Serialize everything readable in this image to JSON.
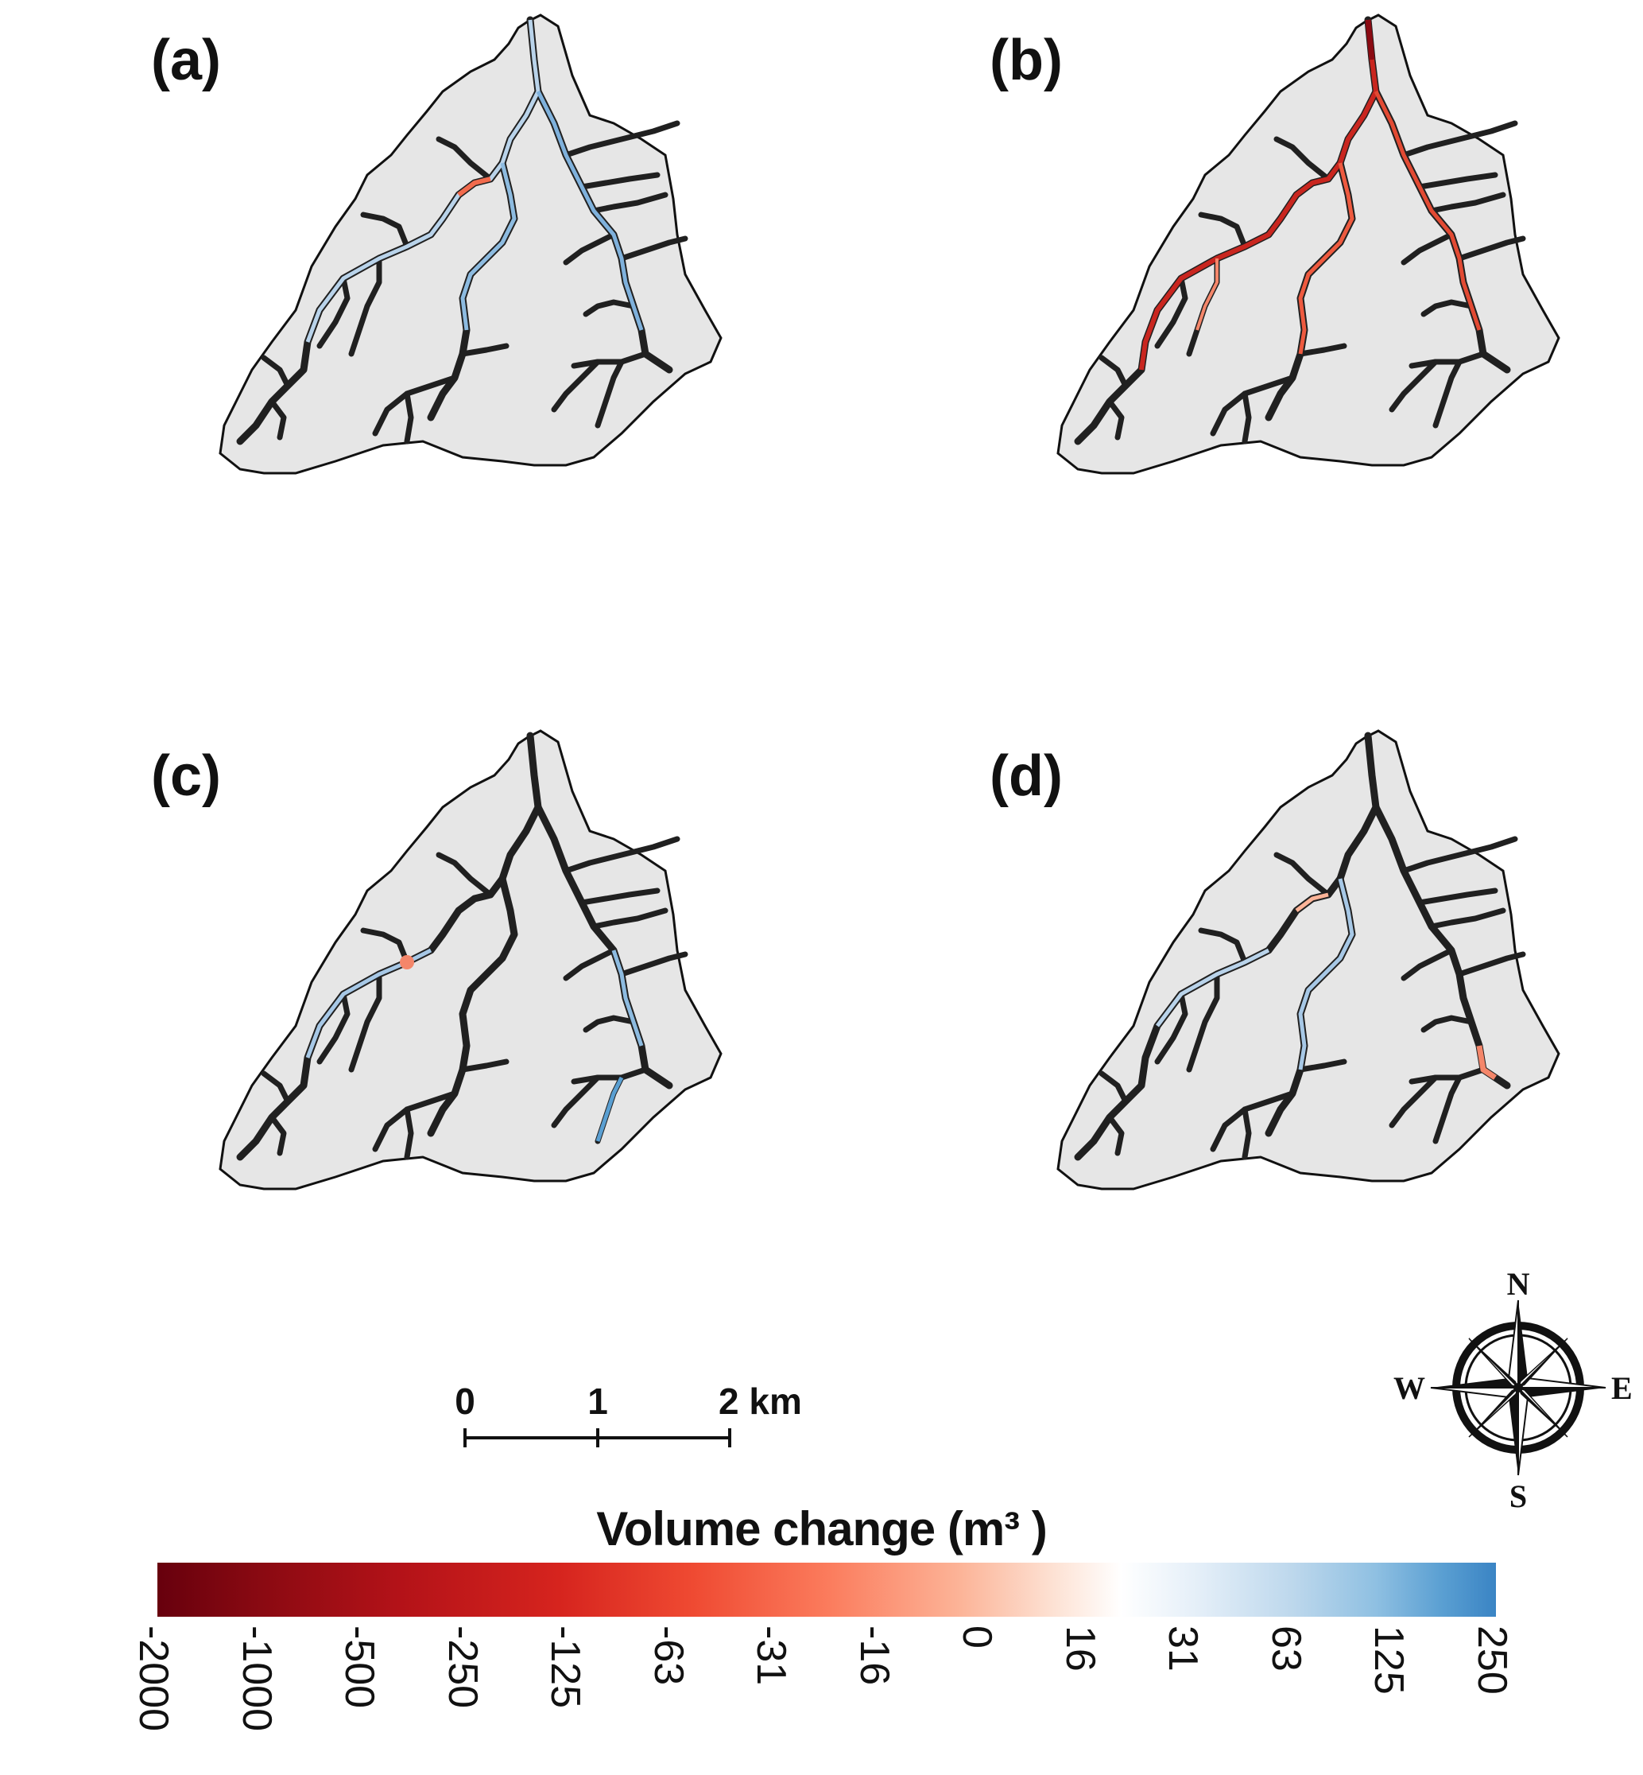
{
  "panels": [
    {
      "label": "(a)"
    },
    {
      "label": "(b)"
    },
    {
      "label": "(c)"
    },
    {
      "label": "(d)"
    }
  ],
  "scale_bar": {
    "ticks": [
      "0",
      "1",
      "2 km"
    ]
  },
  "compass": {
    "north": "N",
    "south": "S",
    "east": "E",
    "west": "W"
  },
  "legend": {
    "title": "Volume change (m³ )",
    "ticks": [
      "-2000",
      "-1000",
      "-500",
      "-250",
      "-125",
      "-63",
      "-31",
      "-16",
      "0",
      "16",
      "31",
      "63",
      "125",
      "250"
    ],
    "colors": {
      "max_loss": "#67000d",
      "loss": "#ef4a32",
      "zero": "#ffffff",
      "gain": "#3a84c4"
    }
  }
}
